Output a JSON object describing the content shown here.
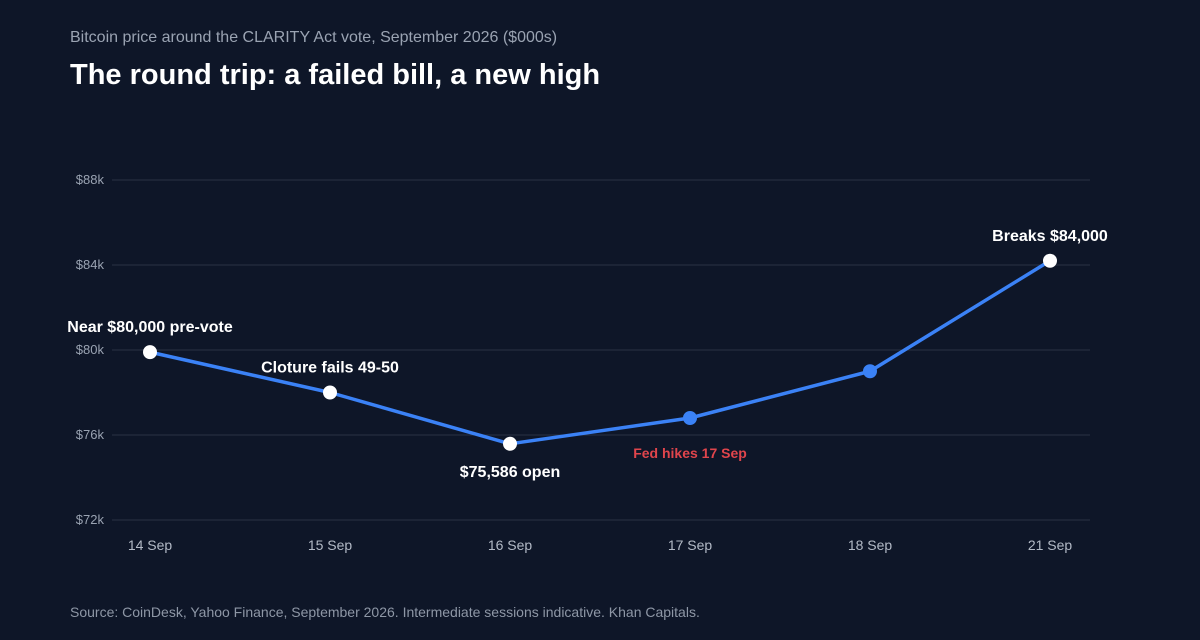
{
  "header": {
    "subtitle": "Bitcoin price around the CLARITY Act vote, September 2026 ($000s)",
    "title": "The round trip: a failed bill, a new high"
  },
  "footer": {
    "source": "Source: CoinDesk, Yahoo Finance, September 2026. Intermediate sessions indicative. Khan Capitals."
  },
  "chart_data": {
    "type": "line",
    "title": "The round trip: a failed bill, a new high",
    "subtitle": "Bitcoin price around the CLARITY Act vote, September 2026 ($000s)",
    "categories": [
      "14 Sep",
      "15 Sep",
      "16 Sep",
      "17 Sep",
      "18 Sep",
      "21 Sep"
    ],
    "series": [
      {
        "values": [
          79.9,
          78.0,
          75.586,
          76.8,
          79.0,
          84.2
        ]
      }
    ],
    "ylim": [
      72,
      88
    ],
    "yticks": [
      72,
      76,
      80,
      84,
      88
    ],
    "ytick_labels": [
      "$72k",
      "$76k",
      "$80k",
      "$84k",
      "$88k"
    ],
    "grid": true,
    "colors": {
      "line": "#3b82f6",
      "highlight_marker": "#ffffff",
      "grid": "#2a3344",
      "alert": "#e0454c"
    },
    "annotations": [
      {
        "index": 0,
        "text": "Near $80,000 pre-vote",
        "position": "above",
        "highlight": true
      },
      {
        "index": 1,
        "text": "Cloture fails 49-50",
        "position": "above",
        "highlight": true
      },
      {
        "index": 2,
        "text": "$75,586 open",
        "position": "below",
        "highlight": true
      },
      {
        "index": 3,
        "text": "Fed hikes 17 Sep",
        "position": "below",
        "highlight": false,
        "style": "alert"
      },
      {
        "index": 4,
        "text": "",
        "position": "above",
        "highlight": false
      },
      {
        "index": 5,
        "text": "Breaks $84,000",
        "position": "above",
        "highlight": true
      }
    ]
  }
}
